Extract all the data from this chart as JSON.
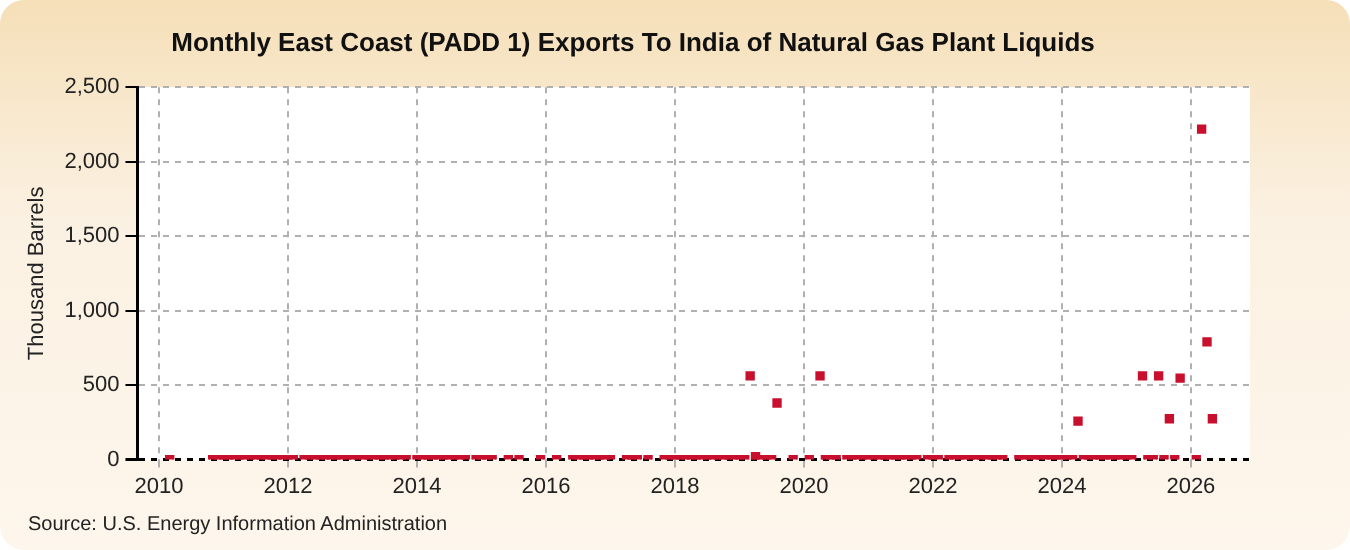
{
  "chart_data": {
    "type": "scatter",
    "title": "Monthly East Coast (PADD 1) Exports To India of Natural Gas Plant Liquids",
    "ylabel": "Thousand Barrels",
    "annotations": [
      "Source: U.S. Energy Information Administration"
    ],
    "x": [
      "2010-03",
      "2010-11",
      "2010-12",
      "2011-01",
      "2011-02",
      "2011-03",
      "2011-04",
      "2011-05",
      "2011-06",
      "2011-07",
      "2011-08",
      "2011-09",
      "2011-10",
      "2011-11",
      "2011-12",
      "2012-01",
      "2012-02",
      "2012-04",
      "2012-05",
      "2012-06",
      "2012-07",
      "2012-08",
      "2012-09",
      "2012-10",
      "2012-11",
      "2012-12",
      "2013-01",
      "2013-02",
      "2013-03",
      "2013-04",
      "2013-05",
      "2013-06",
      "2013-07",
      "2013-08",
      "2013-09",
      "2013-10",
      "2013-11",
      "2014-01",
      "2014-02",
      "2014-03",
      "2014-04",
      "2014-05",
      "2014-06",
      "2014-07",
      "2014-08",
      "2014-09",
      "2014-10",
      "2014-12",
      "2015-01",
      "2015-02",
      "2015-03",
      "2015-06",
      "2015-08",
      "2015-12",
      "2016-03",
      "2016-06",
      "2016-07",
      "2016-08",
      "2016-09",
      "2016-10",
      "2016-11",
      "2016-12",
      "2017-01",
      "2017-04",
      "2017-05",
      "2017-06",
      "2017-08",
      "2017-11",
      "2017-12",
      "2018-01",
      "2018-02",
      "2018-03",
      "2018-04",
      "2018-05",
      "2018-06",
      "2018-07",
      "2018-08",
      "2018-09",
      "2018-10",
      "2018-11",
      "2018-12",
      "2019-01",
      "2019-02",
      "2019-03",
      "2019-04",
      "2019-05",
      "2019-06",
      "2019-07",
      "2019-08",
      "2019-11",
      "2020-02",
      "2020-04",
      "2020-05",
      "2020-06",
      "2020-07",
      "2020-09",
      "2020-10",
      "2020-11",
      "2020-12",
      "2021-01",
      "2021-02",
      "2021-03",
      "2021-04",
      "2021-05",
      "2021-06",
      "2021-07",
      "2021-08",
      "2021-09",
      "2021-10",
      "2021-12",
      "2022-01",
      "2022-02",
      "2022-04",
      "2022-05",
      "2022-06",
      "2022-07",
      "2022-08",
      "2022-09",
      "2022-10",
      "2022-11",
      "2022-12",
      "2023-01",
      "2023-02",
      "2023-05",
      "2023-06",
      "2023-07",
      "2023-08",
      "2023-09",
      "2023-10",
      "2023-11",
      "2023-12",
      "2024-01",
      "2024-02",
      "2024-03",
      "2024-04",
      "2024-05",
      "2024-06",
      "2024-07",
      "2024-08",
      "2024-09",
      "2024-10",
      "2024-11",
      "2024-12",
      "2025-01",
      "2025-02",
      "2025-04",
      "2025-05",
      "2025-06",
      "2025-07",
      "2025-08",
      "2025-09",
      "2025-10",
      "2025-11",
      "2026-02",
      "2026-03",
      "2026-04",
      "2026-05"
    ],
    "values": [
      0,
      0,
      0,
      0,
      0,
      0,
      0,
      0,
      0,
      0,
      0,
      0,
      0,
      0,
      0,
      0,
      0,
      0,
      0,
      0,
      0,
      0,
      0,
      0,
      0,
      0,
      0,
      0,
      0,
      0,
      0,
      0,
      0,
      0,
      0,
      0,
      0,
      0,
      0,
      0,
      0,
      0,
      0,
      0,
      0,
      0,
      0,
      0,
      0,
      0,
      0,
      0,
      0,
      0,
      0,
      0,
      0,
      0,
      0,
      0,
      0,
      0,
      0,
      0,
      0,
      0,
      0,
      0,
      0,
      0,
      0,
      0,
      0,
      0,
      0,
      0,
      0,
      0,
      0,
      0,
      0,
      0,
      0,
      562,
      20,
      0,
      0,
      0,
      380,
      0,
      0,
      562,
      0,
      0,
      0,
      0,
      0,
      0,
      0,
      0,
      0,
      0,
      0,
      0,
      0,
      0,
      0,
      0,
      0,
      0,
      0,
      0,
      0,
      0,
      0,
      0,
      0,
      0,
      0,
      0,
      0,
      0,
      0,
      0,
      0,
      0,
      0,
      0,
      0,
      0,
      0,
      0,
      0,
      0,
      258,
      0,
      0,
      0,
      0,
      0,
      0,
      0,
      0,
      0,
      0,
      562,
      0,
      0,
      562,
      0,
      274,
      0,
      547,
      0,
      2219,
      790,
      274
    ],
    "color": "#c8102e",
    "marker": "square",
    "xlim": [
      "2009-09",
      "2026-12"
    ],
    "xticks": [
      "2010",
      "2012",
      "2014",
      "2016",
      "2018",
      "2020",
      "2022",
      "2024",
      "2026"
    ],
    "ylim": [
      0,
      2500
    ],
    "yticks": [
      0,
      {
        "value": 500,
        "label": "500"
      },
      {
        "value": 1000,
        "label": "1,000"
      },
      {
        "value": 1500,
        "label": "1,500"
      },
      {
        "value": 2000,
        "label": "2,000"
      },
      {
        "value": 2500,
        "label": "2,500"
      }
    ],
    "grid": true
  }
}
